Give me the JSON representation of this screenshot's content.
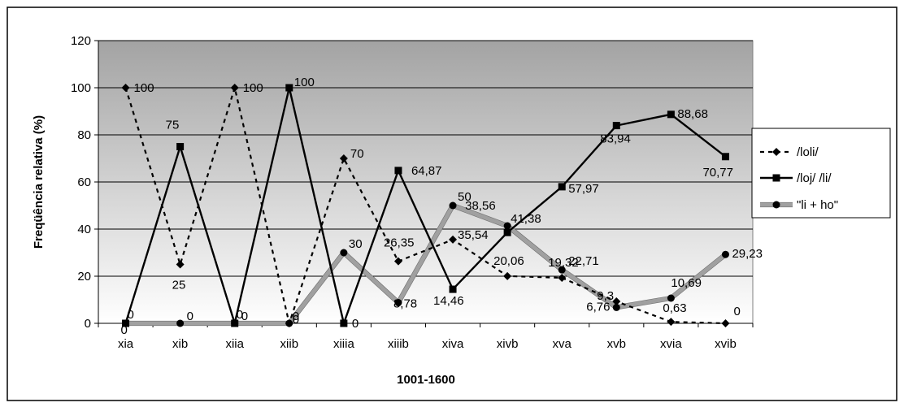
{
  "chart_data": {
    "type": "line",
    "title": "",
    "xlabel": "1001-1600",
    "ylabel": "Freqüência relativa (%)",
    "ylim": [
      0,
      120
    ],
    "yticks": [
      0,
      20,
      40,
      60,
      80,
      100,
      120
    ],
    "grid": true,
    "legend_position": "right",
    "categories": [
      "xia",
      "xib",
      "xiia",
      "xiib",
      "xiiia",
      "xiiib",
      "xiva",
      "xivb",
      "xva",
      "xvb",
      "xvia",
      "xvib"
    ],
    "series": [
      {
        "name": "/loli/",
        "style": "dashed",
        "marker": "diamond",
        "color": "#000000",
        "values": [
          100,
          25,
          100,
          0,
          70,
          26.35,
          35.54,
          20.06,
          19.32,
          9.3,
          0.63,
          0
        ],
        "labels": [
          "100",
          "25",
          "100",
          "0",
          "70",
          "26,35",
          "35,54",
          "20,06",
          "19,32",
          "9,3",
          "0,63",
          "0"
        ]
      },
      {
        "name": "/loj/ /li/",
        "style": "solid",
        "marker": "square",
        "color": "#000000",
        "values": [
          0,
          75,
          0,
          100,
          0,
          64.87,
          14.46,
          38.56,
          57.97,
          83.94,
          88.68,
          70.77
        ],
        "labels": [
          "0",
          "75",
          "0",
          "100",
          "0",
          "64,87",
          "14,46",
          "38,56",
          "57,97",
          "83,94",
          "88,68",
          "70,77"
        ]
      },
      {
        "name": "\"li + ho\"",
        "style": "thick-gray",
        "marker": "circle",
        "color": "#9a9a9a",
        "values": [
          0,
          0,
          0,
          0,
          30,
          8.78,
          50,
          41.38,
          22.71,
          6.76,
          10.69,
          29.23
        ],
        "labels": [
          "0",
          "0",
          "0",
          "0",
          "30",
          "8,78",
          "50",
          "41,38",
          "22,71",
          "6,76",
          "10,69",
          "29,23"
        ]
      }
    ]
  }
}
